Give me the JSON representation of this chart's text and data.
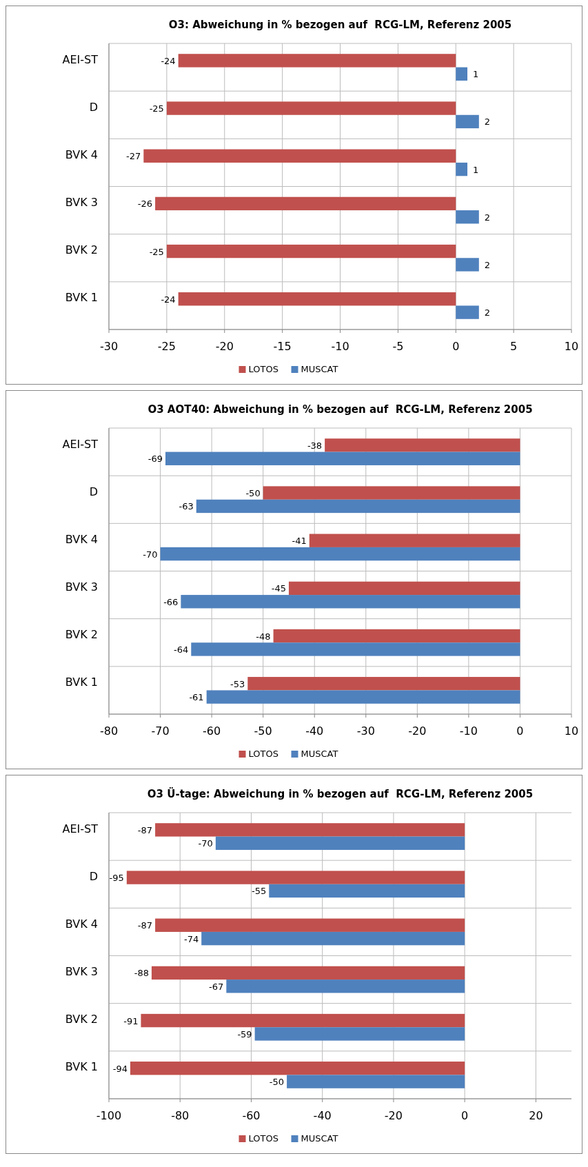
{
  "chart_data": [
    {
      "type": "bar",
      "orientation": "horizontal",
      "title": "O3: Abweichung in % bezogen auf  RCG-LM, Referenz 2005",
      "categories": [
        "AEI-ST",
        "D",
        "BVK 4",
        "BVK 3",
        "BVK 2",
        "BVK 1"
      ],
      "series": [
        {
          "name": "LOTOS",
          "color": "#c0504d",
          "values": [
            -24,
            -25,
            -27,
            -26,
            -25,
            -24
          ]
        },
        {
          "name": "MUSCAT",
          "color": "#4f81bd",
          "values": [
            1,
            2,
            1,
            2,
            2,
            2
          ]
        }
      ],
      "xlim": [
        -30,
        10
      ],
      "xticks": [
        -30,
        -25,
        -20,
        -15,
        -10,
        -5,
        0,
        5,
        10
      ],
      "grid": true,
      "legend": "bottom",
      "data_labels": true
    },
    {
      "type": "bar",
      "orientation": "horizontal",
      "title": "O3 AOT40: Abweichung in % bezogen auf  RCG-LM, Referenz 2005",
      "categories": [
        "AEI-ST",
        "D",
        "BVK 4",
        "BVK 3",
        "BVK 2",
        "BVK 1"
      ],
      "series": [
        {
          "name": "LOTOS",
          "color": "#c0504d",
          "values": [
            -38,
            -50,
            -41,
            -45,
            -48,
            -53
          ]
        },
        {
          "name": "MUSCAT",
          "color": "#4f81bd",
          "values": [
            -69,
            -63,
            -70,
            -66,
            -64,
            -61
          ]
        }
      ],
      "xlim": [
        -80,
        10
      ],
      "xticks": [
        -80,
        -70,
        -60,
        -50,
        -40,
        -30,
        -20,
        -10,
        0,
        10
      ],
      "grid": true,
      "legend": "bottom",
      "data_labels": true
    },
    {
      "type": "bar",
      "orientation": "horizontal",
      "title": "O3 Ü-tage: Abweichung in % bezogen auf  RCG-LM, Referenz 2005",
      "categories": [
        "AEI-ST",
        "D",
        "BVK 4",
        "BVK 3",
        "BVK 2",
        "BVK 1"
      ],
      "series": [
        {
          "name": "LOTOS",
          "color": "#c0504d",
          "values": [
            -87,
            -95,
            -87,
            -88,
            -91,
            -94
          ]
        },
        {
          "name": "MUSCAT",
          "color": "#4f81bd",
          "values": [
            -70,
            -55,
            -74,
            -67,
            -59,
            -50
          ]
        }
      ],
      "xlim": [
        -100,
        30
      ],
      "xticks": [
        -100,
        -80,
        -60,
        -40,
        -20,
        0,
        20
      ],
      "grid": true,
      "legend": "bottom",
      "data_labels": true
    }
  ]
}
